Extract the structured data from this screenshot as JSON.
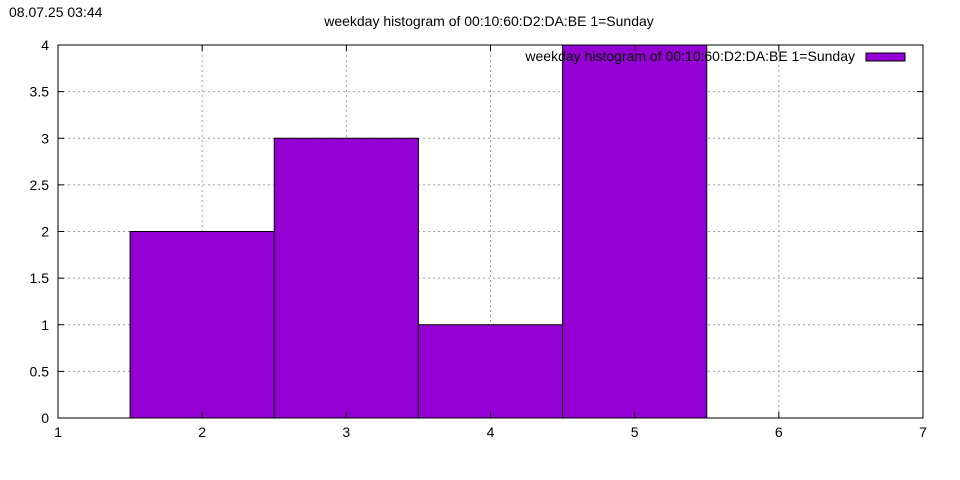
{
  "timestamp": "08.07.25 03:44",
  "chart_data": {
    "type": "bar",
    "title": "weekday histogram of 00:10:60:D2:DA:BE 1=Sunday",
    "xlabel": "",
    "ylabel": "",
    "xlim": [
      1,
      7
    ],
    "ylim": [
      0,
      4
    ],
    "x_ticks": [
      "1",
      "2",
      "3",
      "4",
      "5",
      "6",
      "7"
    ],
    "y_ticks": [
      "0",
      "0.5",
      "1",
      "1.5",
      "2",
      "2.5",
      "3",
      "3.5",
      "4"
    ],
    "grid": true,
    "legend_position": "top-right",
    "bar_width": 1,
    "series": [
      {
        "name": "weekday histogram of 00:10:60:D2:DA:BE 1=Sunday",
        "color": "#9400d3",
        "x": [
          2,
          3,
          4,
          5
        ],
        "values": [
          2,
          3,
          1,
          4
        ]
      }
    ]
  }
}
